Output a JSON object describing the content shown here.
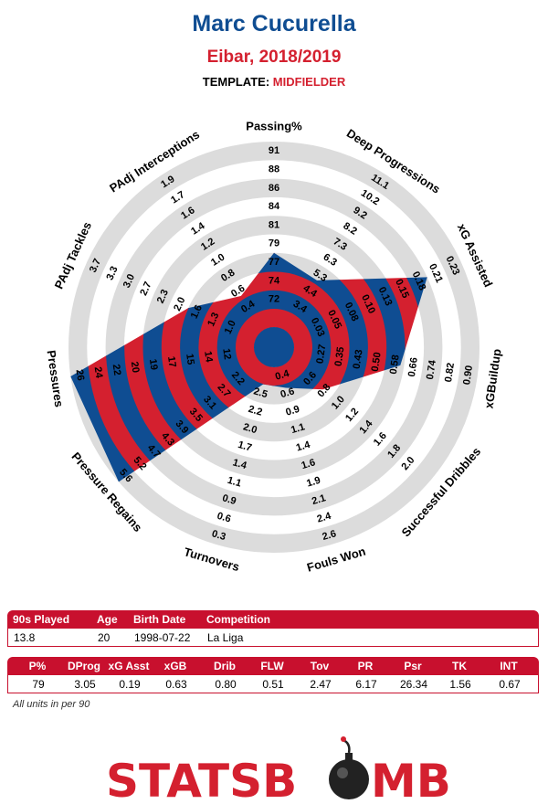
{
  "header": {
    "title": "Marc Cucurella",
    "subtitle": "Eibar, 2018/2019",
    "template_label": "TEMPLATE:",
    "template_value": "MIDFIELDER"
  },
  "colors": {
    "red": "#d4202f",
    "blue": "#0f4d92",
    "ring": "#dcdcdc",
    "logo_red": "#d4202f"
  },
  "chart_data": {
    "type": "radar",
    "rings": 10,
    "axes": [
      {
        "label": "Passing%",
        "ticks": [
          "72",
          "74",
          "77",
          "79",
          "81",
          "84",
          "86",
          "88",
          "91"
        ],
        "value": 79,
        "fraction": 0.4
      },
      {
        "label": "Deep Progressions",
        "ticks": [
          "3.4",
          "4.4",
          "5.3",
          "6.3",
          "7.3",
          "8.2",
          "9.2",
          "10.2",
          "11.1"
        ],
        "value": 3.05,
        "fraction": 0.32
      },
      {
        "label": "xG Assisted",
        "ticks": [
          "0.03",
          "0.05",
          "0.08",
          "0.10",
          "0.13",
          "0.15",
          "0.18",
          "0.21",
          "0.23"
        ],
        "value": 0.19,
        "fraction": 0.8
      },
      {
        "label": "xGBuildup",
        "ticks": [
          "0.27",
          "0.35",
          "0.43",
          "0.50",
          "0.58",
          "0.66",
          "0.74",
          "0.82",
          "0.90"
        ],
        "value": 0.63,
        "fraction": 0.58
      },
      {
        "label": "Successful Dribbles",
        "ticks": [
          "0.6",
          "0.8",
          "1.0",
          "1.2",
          "1.4",
          "1.6",
          "1.8",
          "2.0"
        ],
        "value": 0.8,
        "fraction": 0.24
      },
      {
        "label": "Fouls Won",
        "ticks": [
          "0.4",
          "0.6",
          "0.9",
          "1.1",
          "1.4",
          "1.6",
          "1.9",
          "2.1",
          "2.4",
          "2.6"
        ],
        "value": 0.51,
        "fraction": 0.12
      },
      {
        "label": "Turnovers",
        "ticks": [
          "2.5",
          "2.2",
          "2.0",
          "1.7",
          "1.4",
          "1.1",
          "0.9",
          "0.6",
          "0.3"
        ],
        "value": 2.47,
        "fraction": 0.1
      },
      {
        "label": "Pressure Regains",
        "ticks": [
          "2.2",
          "2.7",
          "3.1",
          "3.5",
          "3.9",
          "4.3",
          "4.7",
          "5.2",
          "5.6"
        ],
        "value": 6.17,
        "fraction": 1.0
      },
      {
        "label": "Pressures",
        "ticks": [
          "12",
          "14",
          "15",
          "17",
          "19",
          "20",
          "22",
          "24",
          "26"
        ],
        "value": 26.34,
        "fraction": 1.0
      },
      {
        "label": "PAdj Tackles",
        "ticks": [
          "1.0",
          "1.3",
          "1.6",
          "2.0",
          "2.3",
          "2.7",
          "3.0",
          "3.3",
          "3.7"
        ],
        "value": 1.56,
        "fraction": 0.4
      },
      {
        "label": "PAdj Interceptions",
        "ticks": [
          "0.4",
          "0.6",
          "0.8",
          "1.0",
          "1.2",
          "1.4",
          "1.6",
          "1.7",
          "1.9"
        ],
        "value": 0.67,
        "fraction": 0.22
      }
    ]
  },
  "info_table": {
    "headers": [
      "90s Played",
      "Age",
      "Birth Date",
      "Competition"
    ],
    "values": [
      "13.8",
      "20",
      "1998-07-22",
      "La Liga"
    ]
  },
  "stats_table": {
    "headers": [
      "P%",
      "DProg",
      "xG Asst",
      "xGB",
      "Drib",
      "FLW",
      "Tov",
      "PR",
      "Psr",
      "TK",
      "INT"
    ],
    "values": [
      "79",
      "3.05",
      "0.19",
      "0.63",
      "0.80",
      "0.51",
      "2.47",
      "6.17",
      "26.34",
      "1.56",
      "0.67"
    ]
  },
  "footnote": "All units in per 90",
  "logo": {
    "part1": "STATSB",
    "part2": "MB"
  }
}
